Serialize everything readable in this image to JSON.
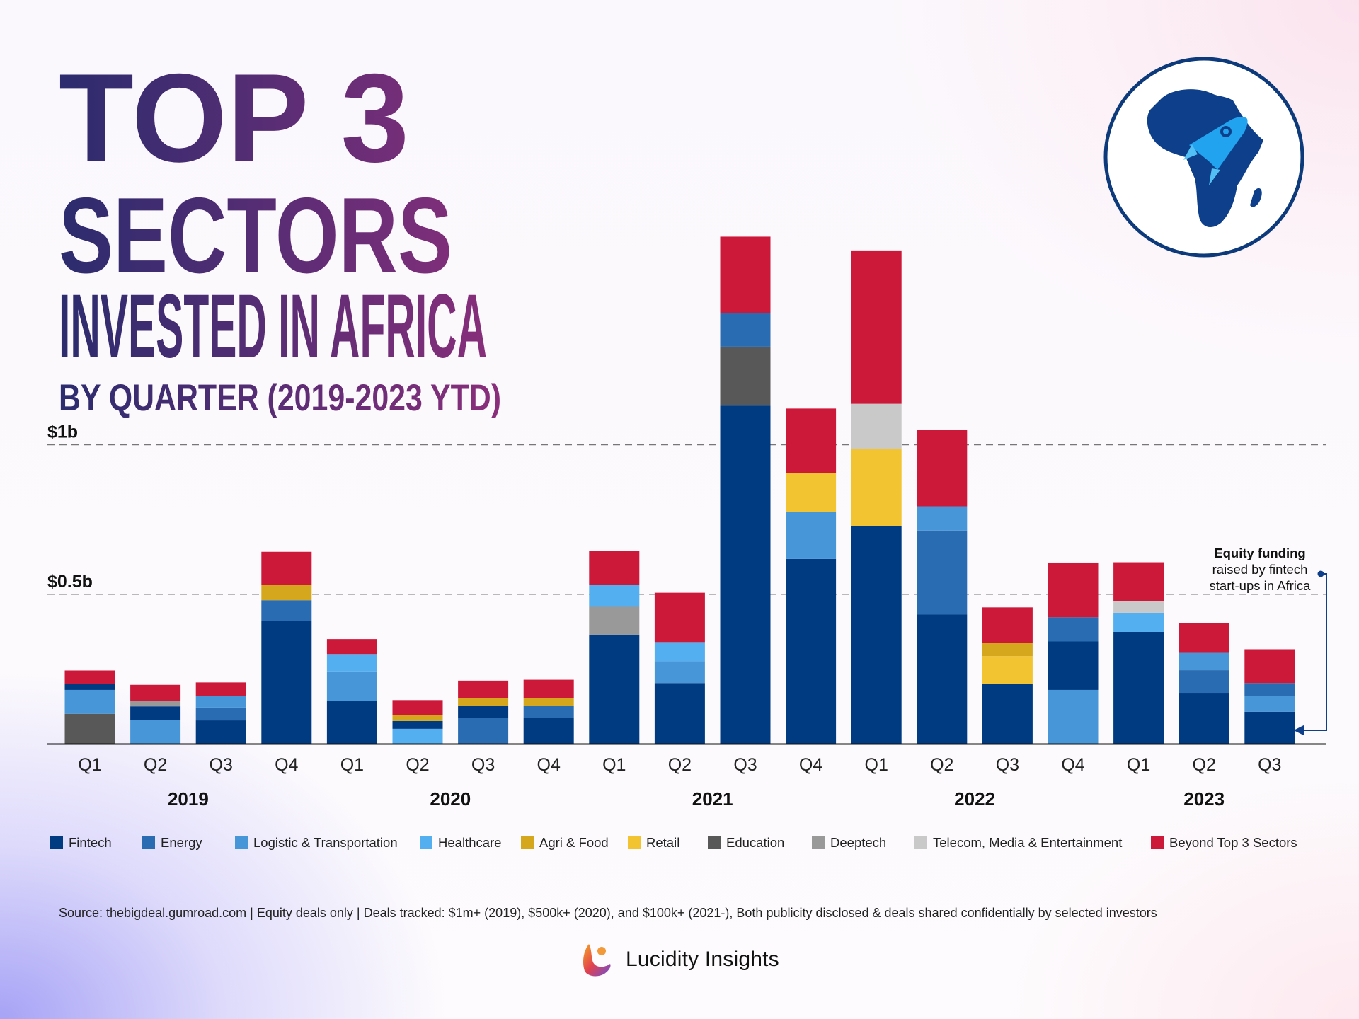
{
  "title": {
    "line1": "TOP 3",
    "line2": "SECTORS",
    "line3": "INVESTED IN AFRICA",
    "line4": "BY QUARTER (2019-2023 YTD)"
  },
  "colors": {
    "title_start": "#2b2c6e",
    "title_end": "#8a2e7b",
    "badge_stroke": "#0d3a7a",
    "africa": "#0d3f8a",
    "rocket": "#22a3ef"
  },
  "badge_icon": "africa-rocket-icon",
  "annotation": {
    "bold": "Equity funding",
    "line2": "raised by fintech",
    "line3": "start-ups in Africa"
  },
  "chart_data": {
    "type": "bar",
    "stacked": true,
    "unit": "USD millions",
    "ylim": [
      0,
      1600
    ],
    "gridlines": [
      {
        "value": 500,
        "label": "$0.5b"
      },
      {
        "value": 1000,
        "label": "$1b"
      }
    ],
    "categories": [
      "Q1",
      "Q2",
      "Q3",
      "Q4",
      "Q1",
      "Q2",
      "Q3",
      "Q4",
      "Q1",
      "Q2",
      "Q3",
      "Q4",
      "Q1",
      "Q2",
      "Q3",
      "Q4",
      "Q1",
      "Q2",
      "Q3"
    ],
    "years": [
      {
        "label": "2019",
        "span": [
          0,
          3
        ]
      },
      {
        "label": "2020",
        "span": [
          4,
          7
        ]
      },
      {
        "label": "2021",
        "span": [
          8,
          11
        ]
      },
      {
        "label": "2022",
        "span": [
          12,
          15
        ]
      },
      {
        "label": "2023",
        "span": [
          16,
          18
        ]
      }
    ],
    "series": [
      {
        "name": "Fintech",
        "color": "#003b82"
      },
      {
        "name": "Energy",
        "color": "#2a6cb2"
      },
      {
        "name": "Logistic & Transportation",
        "color": "#4796d8"
      },
      {
        "name": "Healthcare",
        "color": "#53aff0"
      },
      {
        "name": "Agri & Food",
        "color": "#d4a71d"
      },
      {
        "name": "Retail",
        "color": "#f2c431"
      },
      {
        "name": "Education",
        "color": "#585858"
      },
      {
        "name": "Deeptech",
        "color": "#999999"
      },
      {
        "name": "Telecom, Media & Entertainment",
        "color": "#c9c9c9"
      },
      {
        "name": "Beyond Top 3 Sectors",
        "color": "#cc1839"
      }
    ],
    "bars": [
      [
        {
          "s": "Education",
          "v": 100
        },
        {
          "s": "Logistic & Transportation",
          "v": 80
        },
        {
          "s": "Fintech",
          "v": 20
        },
        {
          "s": "Beyond Top 3 Sectors",
          "v": 45
        }
      ],
      [
        {
          "s": "Logistic & Transportation",
          "v": 80
        },
        {
          "s": "Fintech",
          "v": 45
        },
        {
          "s": "Deeptech",
          "v": 17
        },
        {
          "s": "Beyond Top 3 Sectors",
          "v": 55
        }
      ],
      [
        {
          "s": "Fintech",
          "v": 78
        },
        {
          "s": "Energy",
          "v": 43
        },
        {
          "s": "Logistic & Transportation",
          "v": 38
        },
        {
          "s": "Beyond Top 3 Sectors",
          "v": 46
        }
      ],
      [
        {
          "s": "Fintech",
          "v": 410
        },
        {
          "s": "Energy",
          "v": 70
        },
        {
          "s": "Agri & Food",
          "v": 52
        },
        {
          "s": "Beyond Top 3 Sectors",
          "v": 110
        }
      ],
      [
        {
          "s": "Fintech",
          "v": 142
        },
        {
          "s": "Logistic & Transportation",
          "v": 100
        },
        {
          "s": "Healthcare",
          "v": 58
        },
        {
          "s": "Beyond Top 3 Sectors",
          "v": 50
        }
      ],
      [
        {
          "s": "Healthcare",
          "v": 50
        },
        {
          "s": "Fintech",
          "v": 26
        },
        {
          "s": "Agri & Food",
          "v": 20
        },
        {
          "s": "Beyond Top 3 Sectors",
          "v": 50
        }
      ],
      [
        {
          "s": "Energy",
          "v": 87
        },
        {
          "s": "Fintech",
          "v": 40
        },
        {
          "s": "Agri & Food",
          "v": 26
        },
        {
          "s": "Beyond Top 3 Sectors",
          "v": 58
        }
      ],
      [
        {
          "s": "Fintech",
          "v": 87
        },
        {
          "s": "Energy",
          "v": 40
        },
        {
          "s": "Agri & Food",
          "v": 26
        },
        {
          "s": "Beyond Top 3 Sectors",
          "v": 61
        }
      ],
      [
        {
          "s": "Fintech",
          "v": 365
        },
        {
          "s": "Deeptech",
          "v": 93
        },
        {
          "s": "Healthcare",
          "v": 73
        },
        {
          "s": "Beyond Top 3 Sectors",
          "v": 113
        }
      ],
      [
        {
          "s": "Fintech",
          "v": 203
        },
        {
          "s": "Logistic & Transportation",
          "v": 73
        },
        {
          "s": "Healthcare",
          "v": 64
        },
        {
          "s": "Beyond Top 3 Sectors",
          "v": 165
        }
      ],
      [
        {
          "s": "Fintech",
          "v": 1131
        },
        {
          "s": "Education",
          "v": 197
        },
        {
          "s": "Energy",
          "v": 113
        },
        {
          "s": "Beyond Top 3 Sectors",
          "v": 255
        }
      ],
      [
        {
          "s": "Fintech",
          "v": 618
        },
        {
          "s": "Logistic & Transportation",
          "v": 157
        },
        {
          "s": "Retail",
          "v": 131
        },
        {
          "s": "Beyond Top 3 Sectors",
          "v": 215
        }
      ],
      [
        {
          "s": "Fintech",
          "v": 728
        },
        {
          "s": "Retail",
          "v": 258
        },
        {
          "s": "Telecom, Media & Entertainment",
          "v": 151
        },
        {
          "s": "Beyond Top 3 Sectors",
          "v": 513
        }
      ],
      [
        {
          "s": "Fintech",
          "v": 432
        },
        {
          "s": "Energy",
          "v": 281
        },
        {
          "s": "Logistic & Transportation",
          "v": 81
        },
        {
          "s": "Beyond Top 3 Sectors",
          "v": 255
        }
      ],
      [
        {
          "s": "Fintech",
          "v": 200
        },
        {
          "s": "Retail",
          "v": 93
        },
        {
          "s": "Agri & Food",
          "v": 44
        },
        {
          "s": "Beyond Top 3 Sectors",
          "v": 119
        }
      ],
      [
        {
          "s": "Logistic & Transportation",
          "v": 180
        },
        {
          "s": "Fintech",
          "v": 162
        },
        {
          "s": "Energy",
          "v": 81
        },
        {
          "s": "Beyond Top 3 Sectors",
          "v": 183
        }
      ],
      [
        {
          "s": "Fintech",
          "v": 374
        },
        {
          "s": "Healthcare",
          "v": 64
        },
        {
          "s": "Telecom, Media & Entertainment",
          "v": 38
        },
        {
          "s": "Beyond Top 3 Sectors",
          "v": 131
        }
      ],
      [
        {
          "s": "Fintech",
          "v": 168
        },
        {
          "s": "Energy",
          "v": 78
        },
        {
          "s": "Logistic & Transportation",
          "v": 58
        },
        {
          "s": "Beyond Top 3 Sectors",
          "v": 99
        }
      ],
      [
        {
          "s": "Fintech",
          "v": 107
        },
        {
          "s": "Logistic & Transportation",
          "v": 52
        },
        {
          "s": "Energy",
          "v": 44
        },
        {
          "s": "Beyond Top 3 Sectors",
          "v": 113
        }
      ]
    ],
    "legend_position": "bottom"
  },
  "source": "Source: thebigdeal.gumroad.com | Equity deals only | Deals tracked: $1m+ (2019), $500k+ (2020), and $100k+ (2021-), Both publicity disclosed & deals shared confidentially by selected investors",
  "brand": {
    "name": "Lucidity Insights",
    "icon": "lucidity-logo-icon"
  }
}
